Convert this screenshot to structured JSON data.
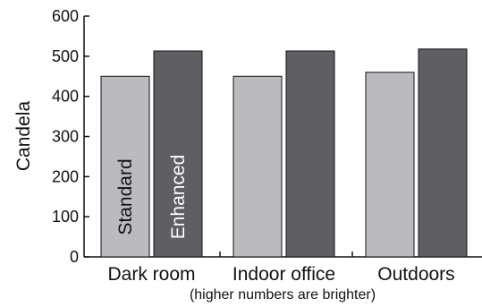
{
  "chart_data": {
    "type": "bar",
    "categories": [
      "Dark room",
      "Indoor office",
      "Outdoors"
    ],
    "series": [
      {
        "name": "Standard",
        "values": [
          450,
          450,
          460
        ],
        "color": "#bbbbbf"
      },
      {
        "name": "Enhanced",
        "values": [
          513,
          513,
          518
        ],
        "color": "#5f5f63"
      }
    ],
    "ylabel": "Candela",
    "xlabel": "(higher numbers are brighter)",
    "ylim": [
      0,
      600
    ],
    "yticks": [
      0,
      100,
      200,
      300,
      400,
      500,
      600
    ],
    "grid": false,
    "legend": "series names printed inside the first group's bars"
  }
}
